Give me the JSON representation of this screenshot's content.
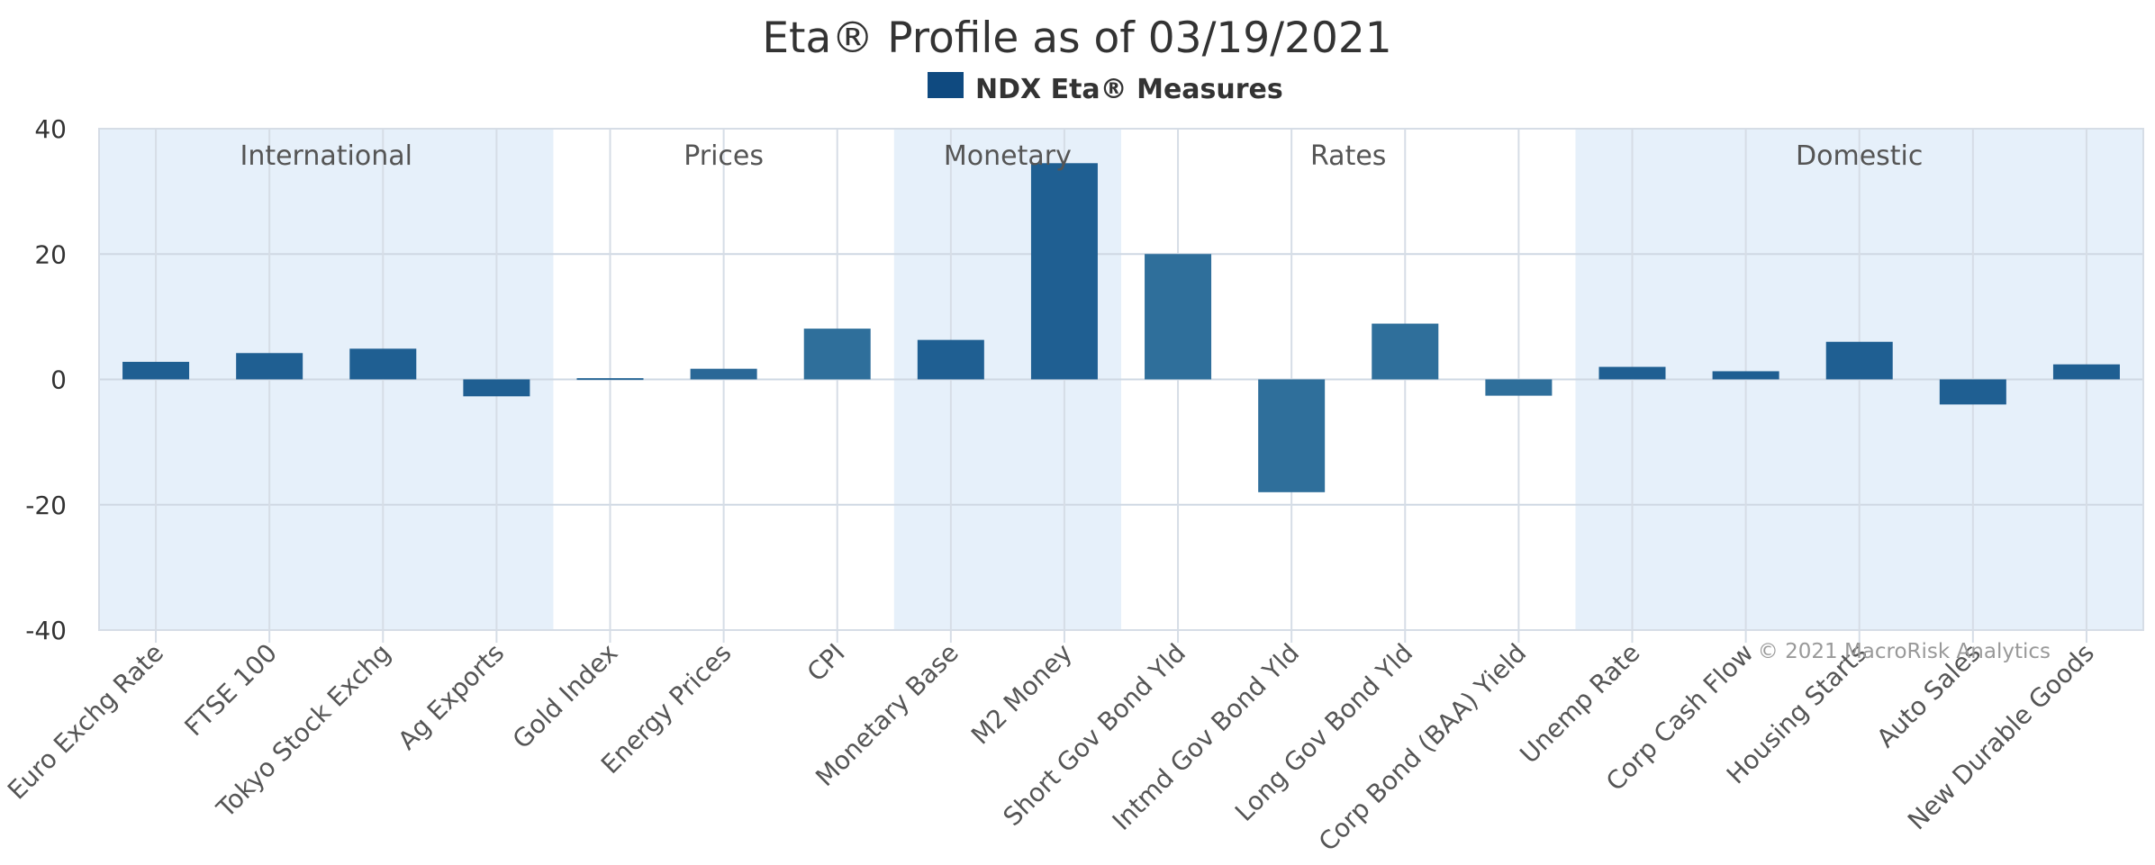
{
  "chart_data": {
    "type": "bar",
    "title": "Eta® Profile as of 03/19/2021",
    "series": [
      {
        "name": "NDX Eta® Measures",
        "values": [
          2.8,
          4.2,
          4.9,
          -2.7,
          0.2,
          1.7,
          8.1,
          6.3,
          34.5,
          20.0,
          -18.0,
          8.9,
          -2.6,
          2.0,
          1.3,
          6.0,
          -4.0,
          2.4
        ]
      }
    ],
    "categories": [
      "Euro Exchg Rate",
      "FTSE 100",
      "Tokyo Stock Exchg",
      "Ag Exports",
      "Gold Index",
      "Energy Prices",
      "CPI",
      "Monetary Base",
      "M2 Money",
      "Short Gov Bond Yld",
      "Intmd Gov Bond Yld",
      "Long Gov Bond Yld",
      "Corp Bond (BAA) Yield",
      "Unemp Rate",
      "Corp Cash Flow",
      "Housing Starts",
      "Auto Sales",
      "New Durable Goods"
    ],
    "bar_colors": [
      "#1f5f92",
      "#1f5f92",
      "#1f5f92",
      "#1f5f92",
      "#2a6897",
      "#2a6897",
      "#2f6f9b",
      "#1f5f92",
      "#1f5f92",
      "#2f6f9b",
      "#2f6f9b",
      "#2f6f9b",
      "#2f6f9b",
      "#1f5f92",
      "#1f5f92",
      "#1f5f92",
      "#1f5f92",
      "#1f5f92"
    ],
    "legend_color": "#0f4a80",
    "band_color": "#e6f0fa",
    "ylim": [
      -40,
      40
    ],
    "yticks": [
      40,
      20,
      0,
      -20,
      -40
    ],
    "grid": true,
    "legend_position": "top-center",
    "groups": [
      {
        "label": "International",
        "from": 0,
        "to": 3,
        "shaded": true
      },
      {
        "label": "Prices",
        "from": 4,
        "to": 6,
        "shaded": false
      },
      {
        "label": "Monetary",
        "from": 7,
        "to": 8,
        "shaded": true
      },
      {
        "label": "Rates",
        "from": 9,
        "to": 12,
        "shaded": false
      },
      {
        "label": "Domestic",
        "from": 13,
        "to": 17,
        "shaded": true
      }
    ],
    "credit": "© 2021 MacroRisk Analytics"
  }
}
